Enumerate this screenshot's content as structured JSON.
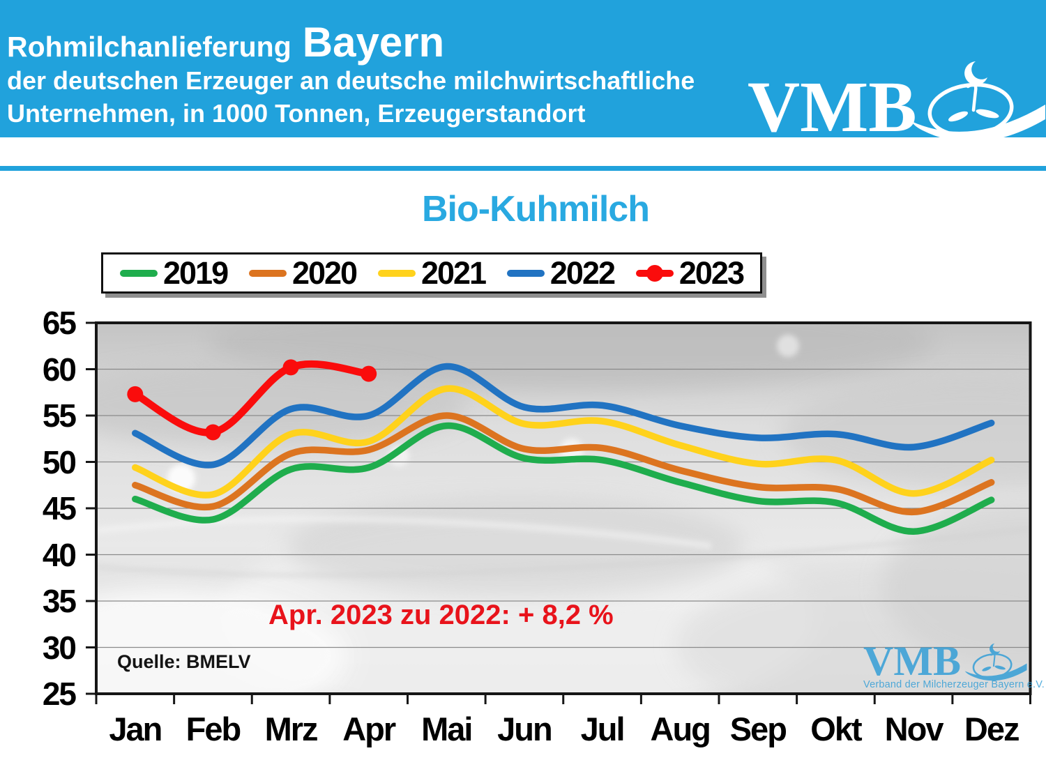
{
  "header": {
    "title_prefix": "Rohmilchanlieferung",
    "title_region": "Bayern",
    "subtitle_line1": "der deutschen Erzeuger an deutsche milchwirtschaftliche",
    "subtitle_line2": "Unternehmen, in 1000 Tonnen, Erzeugerstandort",
    "logo_text": "VMB",
    "accent_color": "#21A2DC"
  },
  "chart_data": {
    "type": "line",
    "title": "Bio-Kuhmilch",
    "unit": "1000 Tonnen",
    "categories": [
      "Jan",
      "Feb",
      "Mrz",
      "Apr",
      "Mai",
      "Jun",
      "Jul",
      "Aug",
      "Sep",
      "Okt",
      "Nov",
      "Dez"
    ],
    "ylim": [
      25,
      65
    ],
    "ytick_step": 5,
    "y_ticks": [
      65,
      60,
      55,
      50,
      45,
      40,
      35,
      30,
      25
    ],
    "grid": true,
    "legend_position": "top",
    "series": [
      {
        "name": "2019",
        "color": "#1FAD4D",
        "marker": false,
        "values": [
          46.0,
          43.8,
          49.2,
          49.4,
          53.9,
          50.4,
          50.2,
          47.8,
          45.8,
          45.6,
          42.5,
          45.9
        ]
      },
      {
        "name": "2020",
        "color": "#DC7420",
        "marker": false,
        "values": [
          47.5,
          45.2,
          50.9,
          51.3,
          55.0,
          51.4,
          51.5,
          49.1,
          47.3,
          47.1,
          44.6,
          47.8
        ]
      },
      {
        "name": "2021",
        "color": "#FFD21C",
        "marker": false,
        "values": [
          49.4,
          46.5,
          53.0,
          52.2,
          57.9,
          54.1,
          54.4,
          51.8,
          49.8,
          50.2,
          46.6,
          50.2
        ]
      },
      {
        "name": "2022",
        "color": "#2173C2",
        "marker": false,
        "values": [
          53.1,
          49.7,
          55.7,
          55.0,
          60.3,
          55.9,
          56.1,
          53.9,
          52.6,
          53.0,
          51.6,
          54.2
        ]
      },
      {
        "name": "2023",
        "color": "#FA0C0C",
        "marker": true,
        "values": [
          57.3,
          53.2,
          60.2,
          59.5
        ]
      }
    ],
    "annotation": {
      "text": "Apr. 2023 zu 2022: + 8,2 %",
      "color": "#E8131B"
    },
    "source": "Quelle: BMELV"
  },
  "watermark": {
    "logo_text": "VMB",
    "tagline": "Verband der Milcherzeuger Bayern e.V.",
    "color": "#2E9CD6"
  }
}
